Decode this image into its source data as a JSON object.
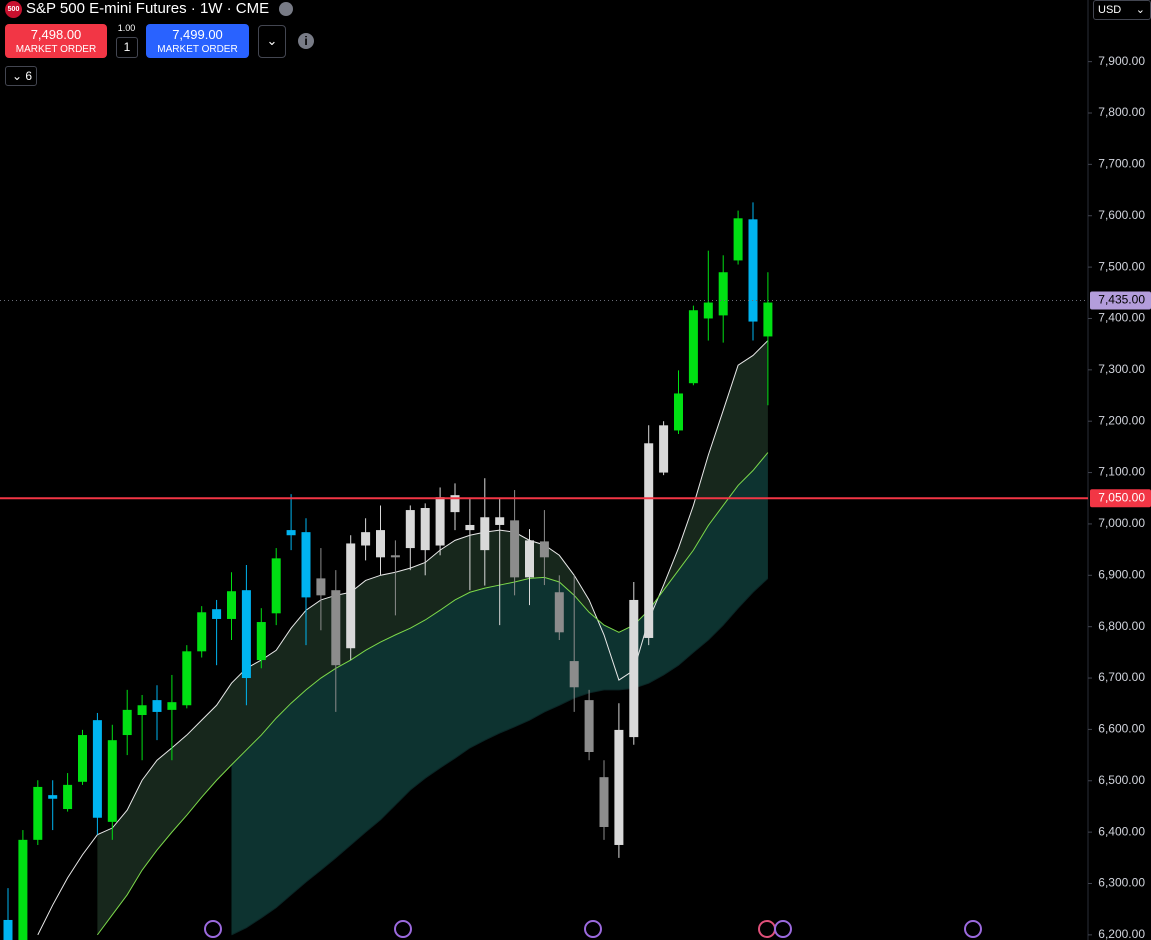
{
  "toolbar": {
    "badge": "500",
    "symbol": "S&P 500 E-mini Futures · 1W · CME",
    "sell_price": "7,498.00",
    "sell_label": "MARKET ORDER",
    "qty_step": "1.00",
    "qty": "1",
    "buy_price": "7,499.00",
    "buy_label": "MARKET ORDER",
    "indicators_count": "6",
    "currency": "USD"
  },
  "chart_data": {
    "type": "candlestick",
    "open": [
      6229,
      6190,
      6385,
      6472,
      6445,
      6498,
      6618,
      6420,
      6589,
      6628,
      6657,
      6638,
      6647,
      6752,
      6834,
      6815,
      6871,
      6735,
      6826,
      6988,
      6984,
      6894,
      6871,
      6758,
      6958,
      6935,
      6939,
      6953,
      6949,
      6958,
      7023,
      6988,
      7013,
      6998,
      7007,
      6896,
      6966,
      6867,
      6733,
      6657,
      6507,
      6375,
      6585,
      6778,
      7100,
      7182,
      7274,
      7400,
      7406,
      7513,
      7593,
      7365
    ],
    "high": [
      6291,
      6404,
      6501,
      6501,
      6515,
      6599,
      6632,
      6609,
      6677,
      6667,
      6686,
      6706,
      6764,
      6840,
      6852,
      6906,
      6920,
      6836,
      6953,
      7058,
      7011,
      6953,
      6910,
      6978,
      7011,
      7036,
      6968,
      7036,
      7040,
      7071,
      7079,
      7050,
      7089,
      7050,
      7066,
      6990,
      7027,
      6900,
      6900,
      6677,
      6540,
      6651,
      6887,
      7192,
      7200,
      7299,
      7425,
      7532,
      7523,
      7610,
      7626,
      7490
    ],
    "low": [
      6180,
      6180,
      6375,
      6404,
      6440,
      6492,
      6395,
      6385,
      6550,
      6540,
      6579,
      6540,
      6641,
      6740,
      6725,
      6774,
      6647,
      6719,
      6803,
      6949,
      6764,
      6793,
      6634,
      6735,
      6929,
      6900,
      6822,
      6910,
      6900,
      6939,
      6988,
      6871,
      6880,
      6803,
      6861,
      6842,
      6881,
      6774,
      6634,
      6540,
      6385,
      6350,
      6570,
      6764,
      7095,
      7175,
      7270,
      7357,
      7353,
      7505,
      7357,
      7231
    ],
    "close": [
      6190,
      6385,
      6488,
      6465,
      6492,
      6589,
      6428,
      6579,
      6638,
      6647,
      6634,
      6653,
      6752,
      6828,
      6815,
      6869,
      6700,
      6809,
      6933,
      6978,
      6857,
      6861,
      6725,
      6962,
      6984,
      6988,
      6935,
      7027,
      7031,
      7052,
      7056,
      6998,
      6949,
      7013,
      6896,
      6968,
      6935,
      6789,
      6682,
      6556,
      6410,
      6599,
      6852,
      7157,
      7192,
      7254,
      7416,
      7431,
      7490,
      7595,
      7394,
      7431
    ],
    "colors": [
      "#00b4f0",
      "#00e013",
      "#00e013",
      "#00b4f0",
      "#00e013",
      "#00e013",
      "#00b4f0",
      "#00e013",
      "#00e013",
      "#00e013",
      "#00b4f0",
      "#00e013",
      "#00e013",
      "#00e013",
      "#00b4f0",
      "#00e013",
      "#00b4f0",
      "#00e013",
      "#00e013",
      "#00b4f0",
      "#00b4f0",
      "#8c8c8c",
      "#8c8c8c",
      "#d9d9d9",
      "#d9d9d9",
      "#d9d9d9",
      "#8c8c8c",
      "#d9d9d9",
      "#d9d9d9",
      "#d9d9d9",
      "#d9d9d9",
      "#d9d9d9",
      "#d9d9d9",
      "#d9d9d9",
      "#8c8c8c",
      "#d9d9d9",
      "#8c8c8c",
      "#8c8c8c",
      "#8c8c8c",
      "#8c8c8c",
      "#8c8c8c",
      "#d9d9d9",
      "#d9d9d9",
      "#d9d9d9",
      "#d9d9d9",
      "#00e013",
      "#00e013",
      "#00e013",
      "#00e013",
      "#00e013",
      "#00b4f0",
      "#00e013"
    ],
    "lines": [
      {
        "color": "#e8e8e8",
        "fill": "#17271c",
        "values": [
          null,
          null,
          6200,
          6258,
          6311,
          6356,
          6395,
          6408,
          6443,
          6501,
          6540,
          6564,
          6589,
          6618,
          6647,
          6690,
          6719,
          6735,
          6754,
          6797,
          6832,
          6852,
          6861,
          6867,
          6890,
          6900,
          6906,
          6914,
          6925,
          6949,
          6968,
          6978,
          6984,
          6988,
          6984,
          6968,
          6959,
          6939,
          6900,
          6852,
          6784,
          6696,
          6715,
          6813,
          6881,
          6953,
          7036,
          7134,
          7221,
          7309,
          7328,
          7357
        ]
      },
      {
        "color": "#7cd94a",
        "fill": "#0d3330",
        "values": [
          null,
          null,
          null,
          null,
          null,
          null,
          6200,
          6239,
          6278,
          6326,
          6365,
          6400,
          6433,
          6468,
          6501,
          6531,
          6560,
          6589,
          6622,
          6651,
          6677,
          6700,
          6719,
          6735,
          6754,
          6770,
          6784,
          6797,
          6813,
          6832,
          6852,
          6867,
          6875,
          6881,
          6887,
          6894,
          6896,
          6887,
          6861,
          6828,
          6803,
          6789,
          6803,
          6832,
          6871,
          6910,
          6949,
          6997,
          7036,
          7075,
          7104,
          7139
        ]
      },
      {
        "color": "#0b2626",
        "values": [
          null,
          null,
          null,
          null,
          null,
          null,
          null,
          null,
          null,
          null,
          null,
          null,
          null,
          null,
          null,
          6200,
          6214,
          6233,
          6253,
          6278,
          6303,
          6326,
          6350,
          6375,
          6400,
          6424,
          6453,
          6482,
          6505,
          6525,
          6544,
          6564,
          6579,
          6593,
          6605,
          6618,
          6634,
          6647,
          6661,
          6671,
          6677,
          6677,
          6680,
          6690,
          6706,
          6725,
          6750,
          6774,
          6803,
          6836,
          6867,
          6894
        ]
      }
    ],
    "hlines": [
      {
        "value": 7050,
        "label": "7,050.00",
        "color": "#f23645",
        "dotted": false
      },
      {
        "value": 7435,
        "label": "7,435.00",
        "color": "#b39ddb",
        "dotted": true
      }
    ],
    "ylim": [
      6190,
      8020
    ],
    "yticks": [
      {
        "value": 6200,
        "label": "6,200.00"
      },
      {
        "value": 6300,
        "label": "6,300.00"
      },
      {
        "value": 6400,
        "label": "6,400.00"
      },
      {
        "value": 6500,
        "label": "6,500.00"
      },
      {
        "value": 6600,
        "label": "6,600.00"
      },
      {
        "value": 6700,
        "label": "6,700.00"
      },
      {
        "value": 6800,
        "label": "6,800.00"
      },
      {
        "value": 6900,
        "label": "6,900.00"
      },
      {
        "value": 7000,
        "label": "7,000.00"
      },
      {
        "value": 7100,
        "label": "7,100.00"
      },
      {
        "value": 7200,
        "label": "7,200.00"
      },
      {
        "value": 7300,
        "label": "7,300.00"
      },
      {
        "value": 7400,
        "label": "7,400.00"
      },
      {
        "value": 7500,
        "label": "7,500.00"
      },
      {
        "value": 7600,
        "label": "7,600.00"
      },
      {
        "value": 7700,
        "label": "7,700.00"
      },
      {
        "value": 7800,
        "label": "7,800.00"
      },
      {
        "value": 7900,
        "label": "7,900.00"
      }
    ]
  }
}
